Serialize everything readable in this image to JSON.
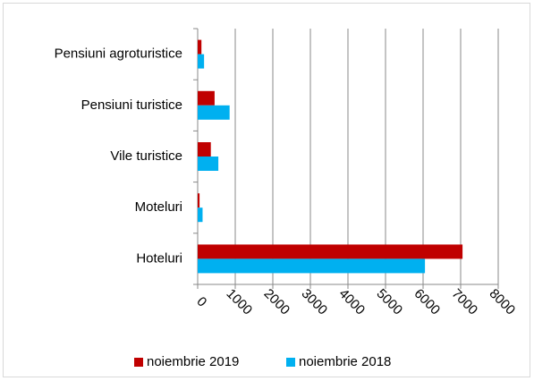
{
  "chart_data": {
    "type": "hbar",
    "categories": [
      "Hoteluri",
      "Moteluri",
      "Vile turistice",
      "Pensiuni turistice",
      "Pensiuni agroturistice"
    ],
    "series": [
      {
        "name": "noiembrie 2019",
        "color": "#c00000",
        "values": [
          7050,
          50,
          350,
          450,
          100
        ]
      },
      {
        "name": "noiembrie 2018",
        "color": "#00b0f0",
        "values": [
          6050,
          130,
          550,
          850,
          170
        ]
      }
    ],
    "xlim": [
      0,
      8000
    ],
    "xticks": [
      0,
      1000,
      2000,
      3000,
      4000,
      5000,
      6000,
      7000,
      8000
    ],
    "grid": true,
    "legend": "bottom"
  }
}
